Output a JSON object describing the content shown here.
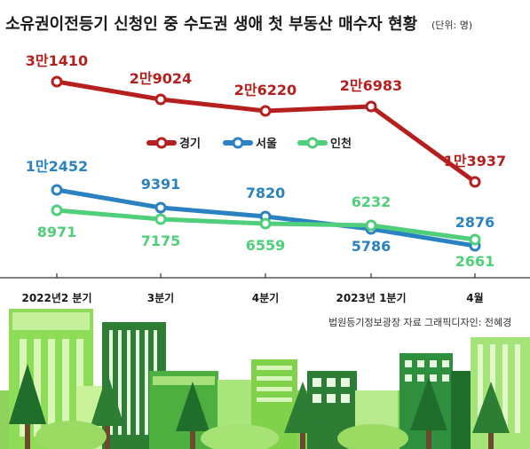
{
  "title": "소유권이전등기 신청인 중 수도권 생애 첫 부동산 매수자 현황",
  "unit": "(단위: 명)",
  "source": "법원등기정보광장 자료",
  "credit": "그래픽디자인: 전혜경",
  "colors": {
    "gyeonggi": "#b5201f",
    "seoul": "#2a82c2",
    "incheon": "#4fcf7a"
  },
  "chart_data": {
    "type": "line",
    "categories": [
      "2022년2 분기",
      "3분기",
      "4분기",
      "2023년 1분기",
      "4월"
    ],
    "series": [
      {
        "name": "경기",
        "values": [
          31410,
          29024,
          26220,
          26983,
          13937
        ],
        "labels": [
          "3만1410",
          "2만9024",
          "2만6220",
          "2만6983",
          "1만3937"
        ]
      },
      {
        "name": "서울",
        "values": [
          12452,
          9391,
          7820,
          5786,
          2876
        ],
        "labels": [
          "1만2452",
          "9391",
          "7820",
          "5786",
          "2876"
        ]
      },
      {
        "name": "인천",
        "values": [
          8971,
          7175,
          6559,
          6232,
          2661
        ],
        "labels": [
          "8971",
          "7175",
          "6559",
          "6232",
          "2661"
        ]
      }
    ],
    "legend_position": "center"
  }
}
